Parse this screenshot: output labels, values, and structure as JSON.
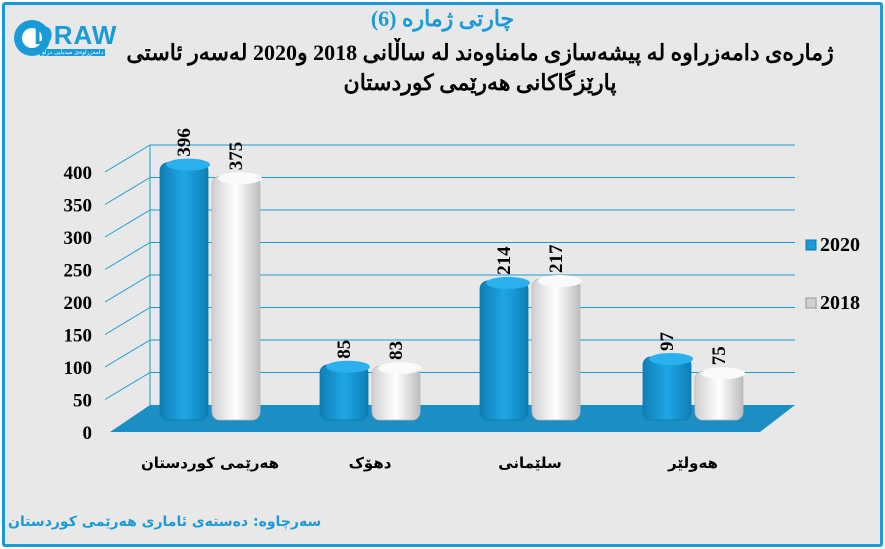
{
  "logo": {
    "text": "DRAW",
    "sub": "دامەزراوەی میدیایی دراو"
  },
  "title": {
    "line1": "چارتی ژمارە (6)",
    "line2": "ژمارەی دامەزراوە لە پیشەسازی مامناوەند لە ساڵانی 2018 و2020 لەسەر ئاستی پارێزگاکانی هەرێمی کوردستان"
  },
  "source": "سەرچاوە: دەستەی ئاماری هەرێمی کوردستان",
  "colors": {
    "s2020": "#1a9bd7",
    "s2018": "#f2f2f2",
    "floor": "#1b8fc4",
    "frame": "#1a9bd7"
  },
  "chart_data": {
    "type": "bar",
    "categories": [
      "هەرێمی کوردستان",
      "دهۆک",
      "سلێمانی",
      "هەولێر"
    ],
    "series": [
      {
        "name": "2020",
        "values": [
          396,
          85,
          214,
          97
        ]
      },
      {
        "name": "2018",
        "values": [
          375,
          83,
          217,
          75
        ]
      }
    ],
    "yticks": [
      "0",
      "50",
      "100",
      "150",
      "200",
      "250",
      "300",
      "350",
      "400"
    ],
    "ylim": [
      0,
      400
    ],
    "grid": true,
    "legend": "right"
  }
}
